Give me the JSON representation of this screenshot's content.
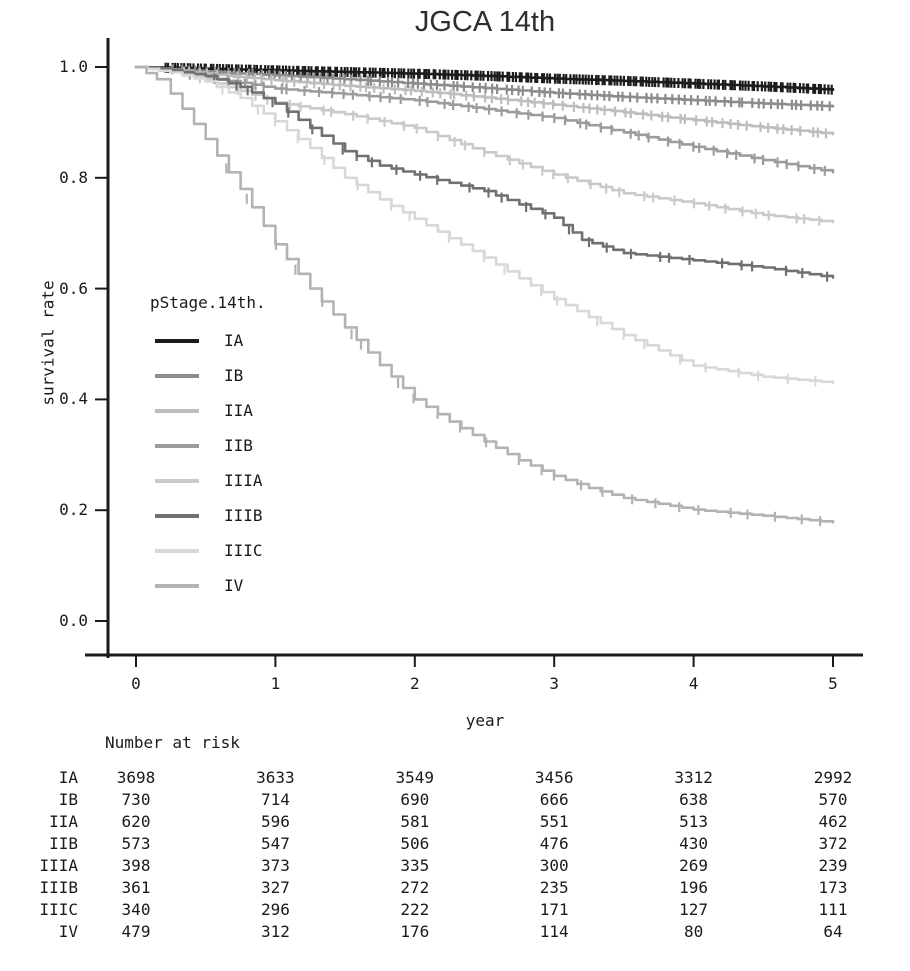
{
  "title": "JGCA 14th",
  "axes": {
    "y_label": "survival rate",
    "x_label": "year",
    "y_ticks": [
      {
        "label": "1.0",
        "value": 1.0
      },
      {
        "label": "0.8",
        "value": 0.8
      },
      {
        "label": "0.6",
        "value": 0.6
      },
      {
        "label": "0.4",
        "value": 0.4
      },
      {
        "label": "0.2",
        "value": 0.2
      },
      {
        "label": "0.0",
        "value": 0.0
      }
    ],
    "x_ticks": [
      {
        "label": "0",
        "value": 0
      },
      {
        "label": "1",
        "value": 1
      },
      {
        "label": "2",
        "value": 2
      },
      {
        "label": "3",
        "value": 3
      },
      {
        "label": "4",
        "value": 4
      },
      {
        "label": "5",
        "value": 5
      }
    ]
  },
  "legend": {
    "title": "pStage.14th.",
    "entries": [
      "IA",
      "IB",
      "IIA",
      "IIB",
      "IIIA",
      "IIIB",
      "IIIC",
      "IV"
    ]
  },
  "risk_table": {
    "header": "Number at risk",
    "time_points": [
      0,
      1,
      2,
      3,
      4,
      5
    ],
    "rows": [
      {
        "label": "IA",
        "counts": [
          3698,
          3633,
          3549,
          3456,
          3312,
          2992
        ]
      },
      {
        "label": "IB",
        "counts": [
          730,
          714,
          690,
          666,
          638,
          570
        ]
      },
      {
        "label": "IIA",
        "counts": [
          620,
          596,
          581,
          551,
          513,
          462
        ]
      },
      {
        "label": "IIB",
        "counts": [
          573,
          547,
          506,
          476,
          430,
          372
        ]
      },
      {
        "label": "IIIA",
        "counts": [
          398,
          373,
          335,
          300,
          269,
          239
        ]
      },
      {
        "label": "IIIB",
        "counts": [
          361,
          327,
          272,
          235,
          196,
          173
        ]
      },
      {
        "label": "IIIC",
        "counts": [
          340,
          296,
          222,
          171,
          127,
          111
        ]
      },
      {
        "label": "IV",
        "counts": [
          479,
          312,
          176,
          114,
          80,
          64
        ]
      }
    ]
  },
  "chart_data": {
    "type": "line",
    "subtype": "kaplan-meier-step",
    "title": "JGCA 14th",
    "xlabel": "year",
    "ylabel": "survival rate",
    "xlim": [
      0,
      5
    ],
    "ylim": [
      0.0,
      1.0
    ],
    "grid": false,
    "legend_position": "inside-left",
    "axis_color": "#1a1a1a",
    "series": [
      {
        "name": "IA",
        "color": "#1c1c1c",
        "points": [
          [
            0,
            1.0
          ],
          [
            0.5,
            0.997
          ],
          [
            1,
            0.994
          ],
          [
            1.5,
            0.991
          ],
          [
            2,
            0.988
          ],
          [
            2.5,
            0.984
          ],
          [
            3,
            0.979
          ],
          [
            3.5,
            0.975
          ],
          [
            4,
            0.97
          ],
          [
            4.5,
            0.965
          ],
          [
            5,
            0.959
          ]
        ],
        "censor": {
          "start": 0.2,
          "end": 5.0,
          "count": 210
        }
      },
      {
        "name": "IB",
        "color": "#8c8c8c",
        "points": [
          [
            0,
            1.0
          ],
          [
            0.5,
            0.992
          ],
          [
            1,
            0.985
          ],
          [
            1.5,
            0.978
          ],
          [
            2,
            0.97
          ],
          [
            2.5,
            0.962
          ],
          [
            3,
            0.953
          ],
          [
            3.5,
            0.946
          ],
          [
            4,
            0.94
          ],
          [
            4.5,
            0.934
          ],
          [
            5,
            0.929
          ]
        ],
        "censor": {
          "start": 0.25,
          "end": 5.0,
          "count": 100
        }
      },
      {
        "name": "IIA",
        "color": "#bdbdbd",
        "points": [
          [
            0,
            1.0
          ],
          [
            0.5,
            0.988
          ],
          [
            1,
            0.976
          ],
          [
            1.5,
            0.966
          ],
          [
            2,
            0.957
          ],
          [
            2.5,
            0.945
          ],
          [
            3,
            0.932
          ],
          [
            3.5,
            0.918
          ],
          [
            4,
            0.904
          ],
          [
            4.5,
            0.891
          ],
          [
            5,
            0.879
          ]
        ],
        "censor": {
          "start": 0.3,
          "end": 5.0,
          "count": 74
        }
      },
      {
        "name": "IIB",
        "color": "#9c9c9c",
        "points": [
          [
            0,
            1.0
          ],
          [
            0.5,
            0.982
          ],
          [
            1,
            0.961
          ],
          [
            1.5,
            0.951
          ],
          [
            2,
            0.94
          ],
          [
            2.5,
            0.924
          ],
          [
            3,
            0.908
          ],
          [
            3.5,
            0.882
          ],
          [
            4,
            0.856
          ],
          [
            4.5,
            0.832
          ],
          [
            5,
            0.81
          ]
        ],
        "censor": {
          "start": 0.35,
          "end": 5.0,
          "count": 52
        }
      },
      {
        "name": "IIIA",
        "color": "#cacaca",
        "points": [
          [
            0,
            1.0
          ],
          [
            0.25,
            0.992
          ],
          [
            0.5,
            0.977
          ],
          [
            0.75,
            0.957
          ],
          [
            1,
            0.936
          ],
          [
            1.5,
            0.915
          ],
          [
            2,
            0.89
          ],
          [
            2.5,
            0.846
          ],
          [
            3,
            0.806
          ],
          [
            3.5,
            0.772
          ],
          [
            4,
            0.754
          ],
          [
            4.5,
            0.733
          ],
          [
            5,
            0.72
          ]
        ],
        "censor": {
          "start": 0.4,
          "end": 5.0,
          "count": 38
        }
      },
      {
        "name": "IIIB",
        "color": "#707070",
        "points": [
          [
            0,
            1.0
          ],
          [
            0.25,
            0.994
          ],
          [
            0.5,
            0.984
          ],
          [
            0.75,
            0.964
          ],
          [
            1,
            0.934
          ],
          [
            1.25,
            0.89
          ],
          [
            1.5,
            0.848
          ],
          [
            1.75,
            0.822
          ],
          [
            2,
            0.806
          ],
          [
            2.5,
            0.776
          ],
          [
            2.75,
            0.752
          ],
          [
            3,
            0.728
          ],
          [
            3.2,
            0.688
          ],
          [
            3.5,
            0.664
          ],
          [
            4,
            0.651
          ],
          [
            4.5,
            0.638
          ],
          [
            5,
            0.62
          ]
        ],
        "censor": {
          "start": 0.45,
          "end": 5.0,
          "count": 30
        }
      },
      {
        "name": "IIIC",
        "color": "#d8d8d8",
        "points": [
          [
            0,
            1.0
          ],
          [
            0.25,
            0.99
          ],
          [
            0.5,
            0.974
          ],
          [
            0.75,
            0.944
          ],
          [
            1,
            0.902
          ],
          [
            1.25,
            0.854
          ],
          [
            1.5,
            0.8
          ],
          [
            1.75,
            0.761
          ],
          [
            2,
            0.726
          ],
          [
            2.5,
            0.656
          ],
          [
            3,
            0.581
          ],
          [
            3.5,
            0.516
          ],
          [
            4,
            0.461
          ],
          [
            4.5,
            0.441
          ],
          [
            5,
            0.43
          ]
        ],
        "censor": {
          "start": 0.5,
          "end": 5.0,
          "count": 22
        }
      },
      {
        "name": "IV",
        "color": "#b3b3b3",
        "points": [
          [
            0,
            1.0
          ],
          [
            0.15,
            0.978
          ],
          [
            0.25,
            0.952
          ],
          [
            0.5,
            0.87
          ],
          [
            0.75,
            0.78
          ],
          [
            1,
            0.68
          ],
          [
            1.25,
            0.6
          ],
          [
            1.5,
            0.53
          ],
          [
            1.75,
            0.462
          ],
          [
            2,
            0.4
          ],
          [
            2.25,
            0.36
          ],
          [
            2.5,
            0.324
          ],
          [
            2.75,
            0.29
          ],
          [
            3,
            0.262
          ],
          [
            3.25,
            0.24
          ],
          [
            3.5,
            0.222
          ],
          [
            4,
            0.201
          ],
          [
            4.5,
            0.19
          ],
          [
            5,
            0.178
          ]
        ],
        "censor": {
          "start": 0.55,
          "end": 5.0,
          "count": 26
        }
      }
    ]
  }
}
